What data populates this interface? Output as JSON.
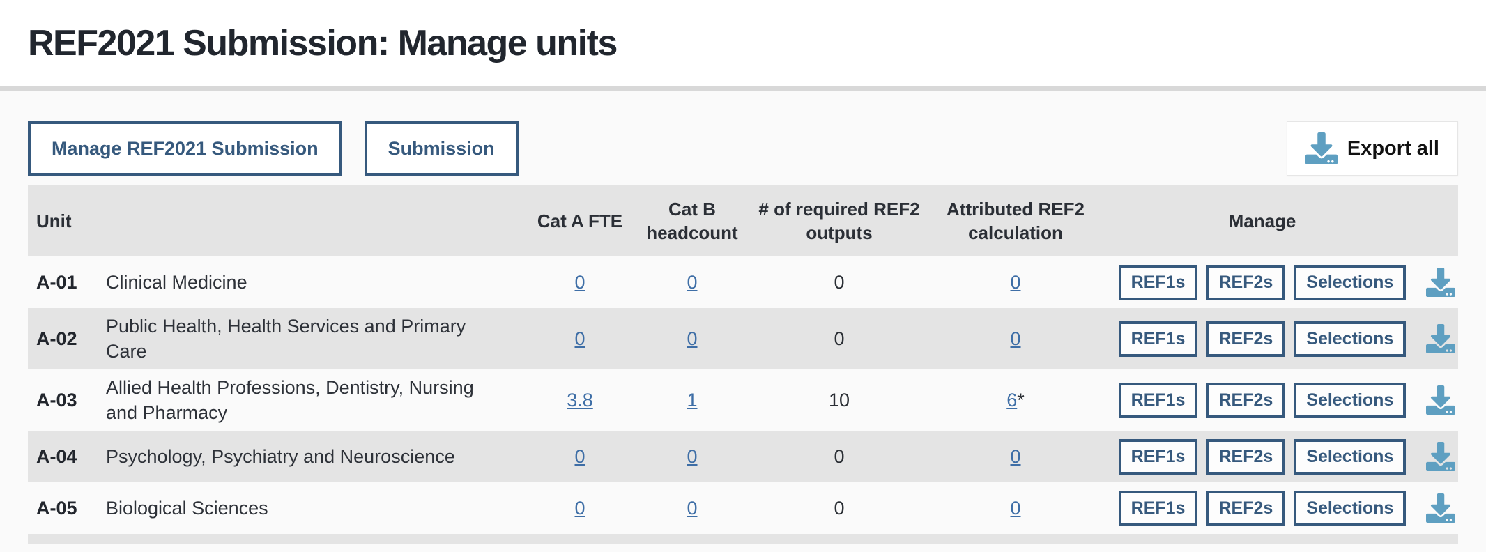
{
  "page": {
    "title": "REF2021 Submission: Manage units"
  },
  "toolbar": {
    "manage_submission_label": "Manage REF2021 Submission",
    "submission_label": "Submission",
    "export_all_label": "Export all"
  },
  "icons": {
    "download": "download-tray-icon"
  },
  "colors": {
    "accent_blue": "#36597d",
    "link_blue": "#3e6ea6",
    "icon_blue": "#5e9fc1",
    "row_gray": "#e4e4e4",
    "row_white": "#fafafa",
    "title_dark": "#21262e"
  },
  "table": {
    "columns": {
      "unit": "Unit",
      "cat_a_fte": "Cat A FTE",
      "cat_b_headcount": "Cat B headcount",
      "required_ref2_outputs": "# of required REF2 outputs",
      "attributed_ref2": "Attributed REF2 calculation",
      "manage": "Manage"
    },
    "row_actions": [
      "REF1s",
      "REF2s",
      "Selections"
    ],
    "rows": [
      {
        "code": "A-01",
        "name": "Clinical Medicine",
        "cat_a_fte": "0",
        "cat_b_headcount": "0",
        "required_ref2_outputs": "0",
        "attributed_ref2": "0",
        "attributed_suffix": ""
      },
      {
        "code": "A-02",
        "name": "Public Health, Health Services and Primary Care",
        "cat_a_fte": "0",
        "cat_b_headcount": "0",
        "required_ref2_outputs": "0",
        "attributed_ref2": "0",
        "attributed_suffix": ""
      },
      {
        "code": "A-03",
        "name": "Allied Health Professions, Dentistry, Nursing and Pharmacy",
        "cat_a_fte": "3.8",
        "cat_b_headcount": "1",
        "required_ref2_outputs": "10",
        "attributed_ref2": "6",
        "attributed_suffix": "*"
      },
      {
        "code": "A-04",
        "name": "Psychology, Psychiatry and Neuroscience",
        "cat_a_fte": "0",
        "cat_b_headcount": "0",
        "required_ref2_outputs": "0",
        "attributed_ref2": "0",
        "attributed_suffix": ""
      },
      {
        "code": "A-05",
        "name": "Biological Sciences",
        "cat_a_fte": "0",
        "cat_b_headcount": "0",
        "required_ref2_outputs": "0",
        "attributed_ref2": "0",
        "attributed_suffix": ""
      }
    ]
  }
}
